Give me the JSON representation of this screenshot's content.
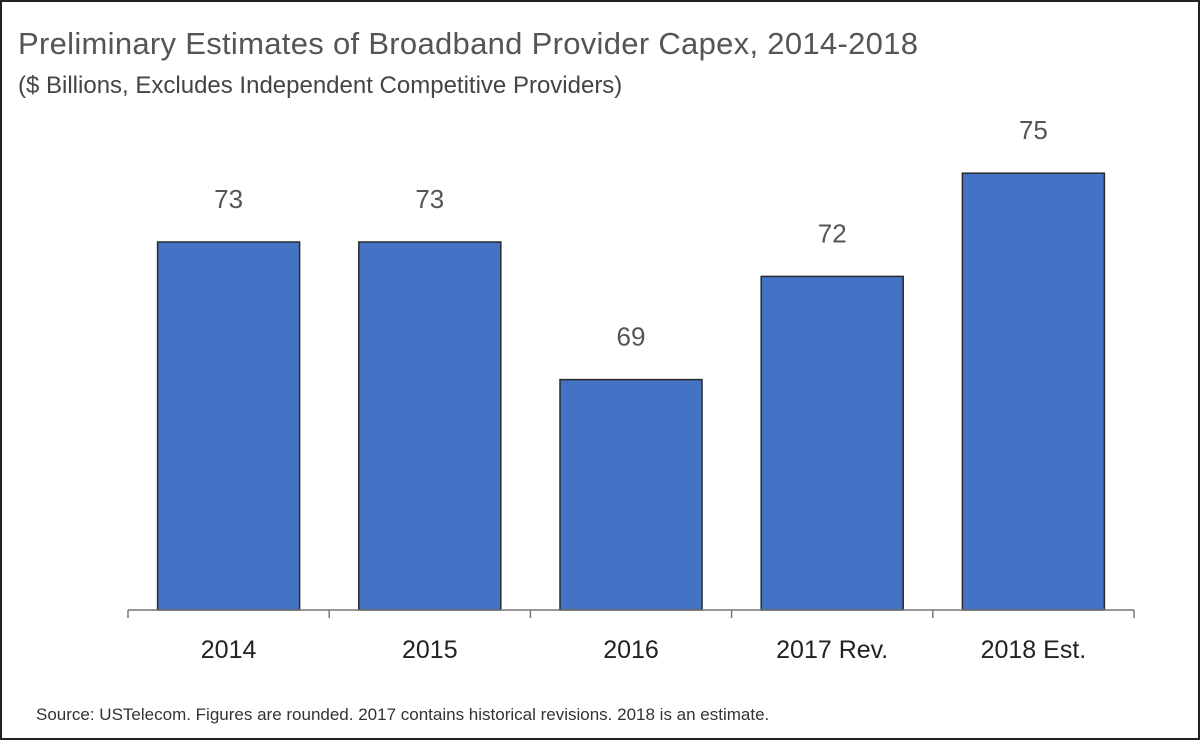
{
  "title": "Preliminary Estimates of Broadband Provider Capex, 2014-2018",
  "subtitle": "($ Billions, Excludes Independent Competitive Providers)",
  "source_note": "Source:  USTelecom.  Figures are rounded. 2017 contains historical revisions. 2018 is an estimate.",
  "colors": {
    "bar": "#4472c4",
    "bar_outline": "#2a2a2a",
    "axis": "#777777"
  },
  "chart_data": {
    "type": "bar",
    "title": "Preliminary Estimates of Broadband Provider Capex, 2014-2018",
    "subtitle": "($ Billions, Excludes Independent Competitive Providers)",
    "categories": [
      "2014",
      "2015",
      "2016",
      "2017 Rev.",
      "2018 Est."
    ],
    "values": [
      73,
      73,
      69,
      72,
      75
    ],
    "value_labels": [
      "73",
      "73",
      "69",
      "72",
      "75"
    ],
    "xlabel": "",
    "ylabel": "",
    "ylim": [
      62.3,
      75.5
    ],
    "grid": false,
    "legend": "none"
  }
}
